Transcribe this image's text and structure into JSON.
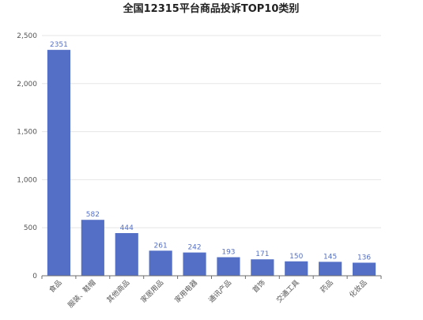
{
  "chart_data": {
    "type": "bar",
    "title": "全国12315平台商品投诉TOP10类别",
    "xlabel": "",
    "ylabel": "",
    "categories": [
      "食品",
      "服装、鞋帽",
      "其他商品",
      "家居用品",
      "家用电器",
      "通讯产品",
      "首饰",
      "交通工具",
      "药品",
      "化妆品"
    ],
    "values": [
      2351,
      582,
      444,
      261,
      242,
      193,
      171,
      150,
      145,
      136
    ],
    "ylim": [
      0,
      2500
    ],
    "yticks": [
      0,
      500,
      1000,
      1500,
      2000,
      2500
    ],
    "ytick_labels": [
      "0",
      "500",
      "1,000",
      "1,500",
      "2,000",
      "2,500"
    ],
    "grid": true,
    "legend": "none",
    "colors": {
      "bar": "#5470c6",
      "data_label": "#5470c6"
    }
  }
}
